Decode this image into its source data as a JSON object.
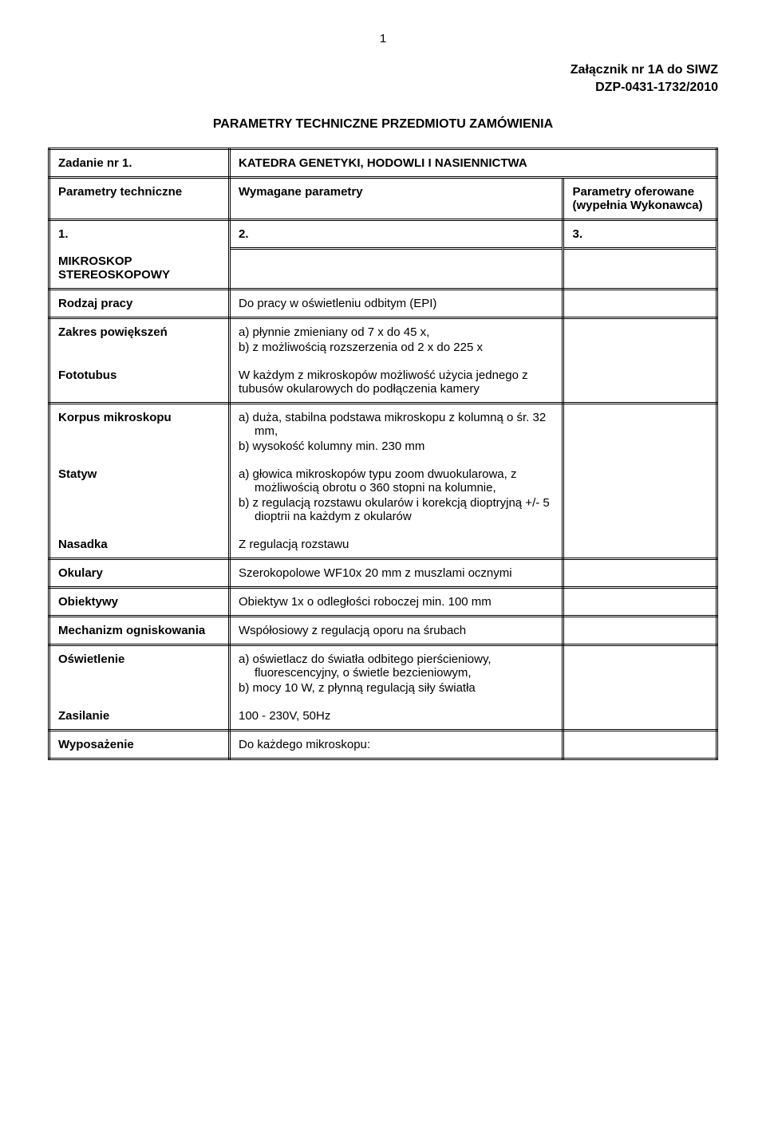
{
  "page_number": "1",
  "header": {
    "line1": "Załącznik nr 1A do SIWZ",
    "line2": "DZP-0431-1732/2010"
  },
  "title": "PARAMETRY TECHNICZNE PRZEDMIOTU ZAMÓWIENIA",
  "table": {
    "col_widths": [
      "27%",
      "50%",
      "23%"
    ],
    "header_row": {
      "c1": "Zadanie nr  1.",
      "c2": "KATEDRA GENETYKI, HODOWLI I NASIENNICTWA"
    },
    "param_row": {
      "c1": "Parametry techniczne",
      "c2": "Wymagane parametry",
      "c3": "Parametry oferowane (wypełnia Wykonawca)"
    },
    "num_row": {
      "c1": "1.",
      "c2": "2.",
      "c3": "3."
    },
    "device_row": {
      "c1a": "MIKROSKOP",
      "c1b": "STEREOSKOPOWY"
    },
    "rows": [
      {
        "label": "Rodzaj pracy",
        "content": "Do pracy w oświetleniu odbitym (EPI)"
      },
      {
        "label": "Zakres powiększeń",
        "list": [
          "a)  płynnie zmieniany od 7 x do 45 x,",
          "b)   z możliwością rozszerzenia od 2 x do 225 x"
        ]
      },
      {
        "label": "Fototubus",
        "content": "W każdym  z mikroskopów możliwość użycia jednego z tubusów okularowych do podłączenia kamery"
      },
      {
        "label": "Korpus mikroskopu",
        "list": [
          "a)  duża, stabilna podstawa mikroskopu z kolumną o śr. 32 mm,",
          "b)  wysokość kolumny min. 230 mm"
        ]
      },
      {
        "label": "Statyw",
        "list": [
          "a)  głowica mikroskopów typu zoom dwuokularowa, z możliwością obrotu o 360 stopni na kolumnie,",
          "b)  z regulacją rozstawu okularów i korekcją dioptryjną +/- 5 dioptrii na każdym z okularów"
        ]
      },
      {
        "label": "Nasadka",
        "content": "Z regulacją rozstawu"
      },
      {
        "label": "Okulary",
        "content": "Szerokopolowe WF10x 20 mm z muszlami ocznymi"
      },
      {
        "label": "Obiektywy",
        "content": "Obiektyw 1x o odległości roboczej min. 100 mm"
      },
      {
        "label": "Mechanizm ogniskowania",
        "content": "Współosiowy z regulacją oporu na śrubach"
      },
      {
        "label": "Oświetlenie",
        "list": [
          "a)  oświetlacz do światła odbitego pierścieniowy, fluorescencyjny,  o świetle bezcieniowym,",
          "b)  mocy 10 W, z płynną regulacją siły światła"
        ]
      },
      {
        "label": "Zasilanie",
        "content": "100 - 230V, 50Hz"
      },
      {
        "label": "Wyposażenie",
        "content": "Do każdego mikroskopu:"
      }
    ]
  }
}
